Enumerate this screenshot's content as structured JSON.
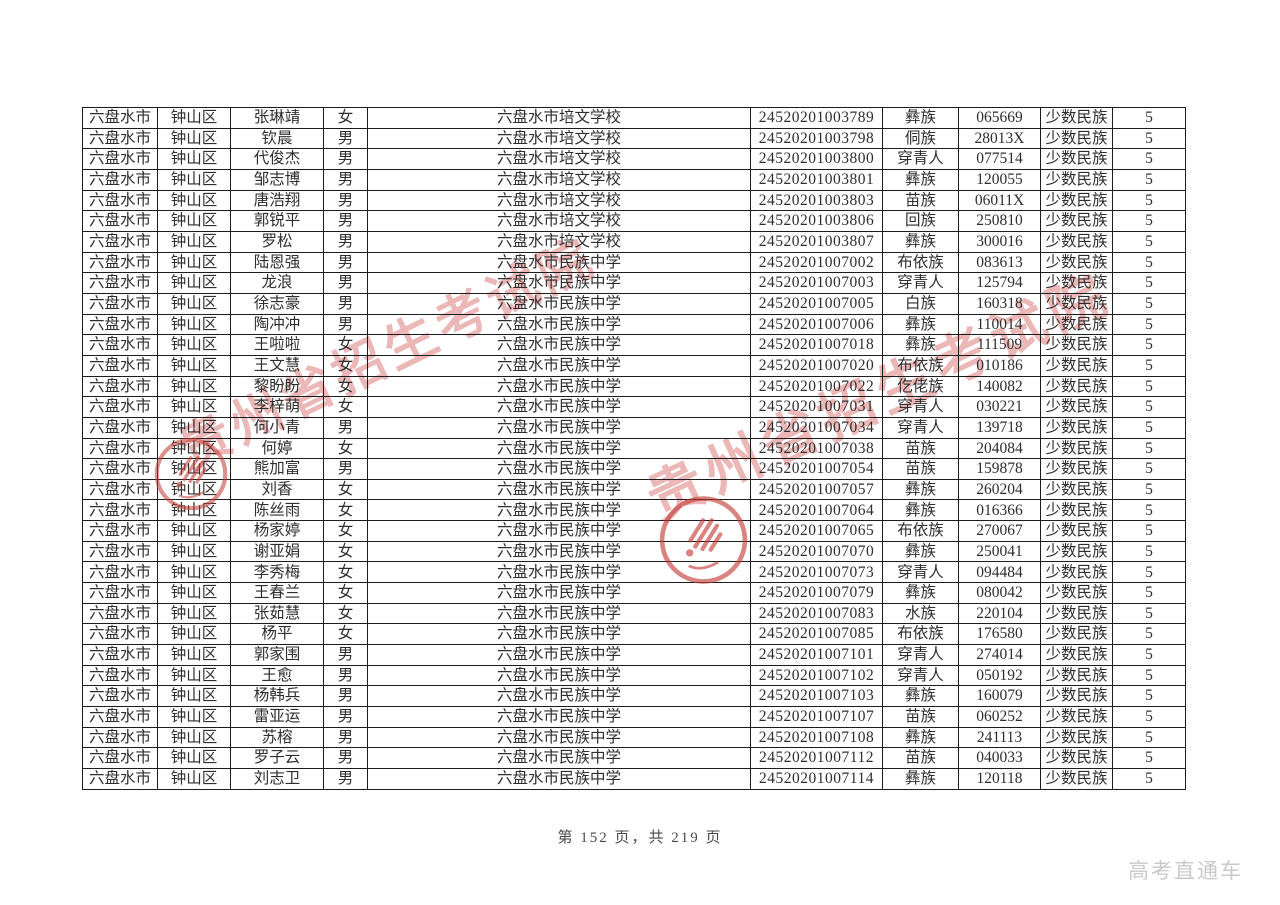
{
  "page": {
    "footer": "第 152 页，共 219 页",
    "page_number": "152",
    "total_pages": "219",
    "brand": "高考直通车"
  },
  "watermark": {
    "text": "贵州省招生考试院",
    "color": "#d96a6a",
    "seal_color": "#c23a33"
  },
  "table": {
    "columns": [
      "city",
      "district",
      "name",
      "gender",
      "school",
      "exam_number",
      "ethnicity",
      "code",
      "category",
      "bonus_points"
    ],
    "rows": [
      [
        "六盘水市",
        "钟山区",
        "张琳靖",
        "女",
        "六盘水市培文学校",
        "24520201003789",
        "彝族",
        "065669",
        "少数民族",
        "5"
      ],
      [
        "六盘水市",
        "钟山区",
        "钦晨",
        "男",
        "六盘水市培文学校",
        "24520201003798",
        "侗族",
        "28013X",
        "少数民族",
        "5"
      ],
      [
        "六盘水市",
        "钟山区",
        "代俊杰",
        "男",
        "六盘水市培文学校",
        "24520201003800",
        "穿青人",
        "077514",
        "少数民族",
        "5"
      ],
      [
        "六盘水市",
        "钟山区",
        "邹志博",
        "男",
        "六盘水市培文学校",
        "24520201003801",
        "彝族",
        "120055",
        "少数民族",
        "5"
      ],
      [
        "六盘水市",
        "钟山区",
        "唐浩翔",
        "男",
        "六盘水市培文学校",
        "24520201003803",
        "苗族",
        "06011X",
        "少数民族",
        "5"
      ],
      [
        "六盘水市",
        "钟山区",
        "郭锐平",
        "男",
        "六盘水市培文学校",
        "24520201003806",
        "回族",
        "250810",
        "少数民族",
        "5"
      ],
      [
        "六盘水市",
        "钟山区",
        "罗松",
        "男",
        "六盘水市培文学校",
        "24520201003807",
        "彝族",
        "300016",
        "少数民族",
        "5"
      ],
      [
        "六盘水市",
        "钟山区",
        "陆恩强",
        "男",
        "六盘水市民族中学",
        "24520201007002",
        "布依族",
        "083613",
        "少数民族",
        "5"
      ],
      [
        "六盘水市",
        "钟山区",
        "龙浪",
        "男",
        "六盘水市民族中学",
        "24520201007003",
        "穿青人",
        "125794",
        "少数民族",
        "5"
      ],
      [
        "六盘水市",
        "钟山区",
        "徐志豪",
        "男",
        "六盘水市民族中学",
        "24520201007005",
        "白族",
        "160318",
        "少数民族",
        "5"
      ],
      [
        "六盘水市",
        "钟山区",
        "陶冲冲",
        "男",
        "六盘水市民族中学",
        "24520201007006",
        "彝族",
        "110014",
        "少数民族",
        "5"
      ],
      [
        "六盘水市",
        "钟山区",
        "王啦啦",
        "女",
        "六盘水市民族中学",
        "24520201007018",
        "彝族",
        "111509",
        "少数民族",
        "5"
      ],
      [
        "六盘水市",
        "钟山区",
        "王文慧",
        "女",
        "六盘水市民族中学",
        "24520201007020",
        "布依族",
        "010186",
        "少数民族",
        "5"
      ],
      [
        "六盘水市",
        "钟山区",
        "黎盼盼",
        "女",
        "六盘水市民族中学",
        "24520201007022",
        "仡佬族",
        "140082",
        "少数民族",
        "5"
      ],
      [
        "六盘水市",
        "钟山区",
        "李梓萌",
        "女",
        "六盘水市民族中学",
        "24520201007031",
        "穿青人",
        "030221",
        "少数民族",
        "5"
      ],
      [
        "六盘水市",
        "钟山区",
        "何小青",
        "男",
        "六盘水市民族中学",
        "24520201007034",
        "穿青人",
        "139718",
        "少数民族",
        "5"
      ],
      [
        "六盘水市",
        "钟山区",
        "何婷",
        "女",
        "六盘水市民族中学",
        "24520201007038",
        "苗族",
        "204084",
        "少数民族",
        "5"
      ],
      [
        "六盘水市",
        "钟山区",
        "熊加富",
        "男",
        "六盘水市民族中学",
        "24520201007054",
        "苗族",
        "159878",
        "少数民族",
        "5"
      ],
      [
        "六盘水市",
        "钟山区",
        "刘香",
        "女",
        "六盘水市民族中学",
        "24520201007057",
        "彝族",
        "260204",
        "少数民族",
        "5"
      ],
      [
        "六盘水市",
        "钟山区",
        "陈丝雨",
        "女",
        "六盘水市民族中学",
        "24520201007064",
        "彝族",
        "016366",
        "少数民族",
        "5"
      ],
      [
        "六盘水市",
        "钟山区",
        "杨家婷",
        "女",
        "六盘水市民族中学",
        "24520201007065",
        "布依族",
        "270067",
        "少数民族",
        "5"
      ],
      [
        "六盘水市",
        "钟山区",
        "谢亚娟",
        "女",
        "六盘水市民族中学",
        "24520201007070",
        "彝族",
        "250041",
        "少数民族",
        "5"
      ],
      [
        "六盘水市",
        "钟山区",
        "李秀梅",
        "女",
        "六盘水市民族中学",
        "24520201007073",
        "穿青人",
        "094484",
        "少数民族",
        "5"
      ],
      [
        "六盘水市",
        "钟山区",
        "王春兰",
        "女",
        "六盘水市民族中学",
        "24520201007079",
        "彝族",
        "080042",
        "少数民族",
        "5"
      ],
      [
        "六盘水市",
        "钟山区",
        "张茹慧",
        "女",
        "六盘水市民族中学",
        "24520201007083",
        "水族",
        "220104",
        "少数民族",
        "5"
      ],
      [
        "六盘水市",
        "钟山区",
        "杨平",
        "女",
        "六盘水市民族中学",
        "24520201007085",
        "布依族",
        "176580",
        "少数民族",
        "5"
      ],
      [
        "六盘水市",
        "钟山区",
        "郭家围",
        "男",
        "六盘水市民族中学",
        "24520201007101",
        "穿青人",
        "274014",
        "少数民族",
        "5"
      ],
      [
        "六盘水市",
        "钟山区",
        "王愈",
        "男",
        "六盘水市民族中学",
        "24520201007102",
        "穿青人",
        "050192",
        "少数民族",
        "5"
      ],
      [
        "六盘水市",
        "钟山区",
        "杨韩兵",
        "男",
        "六盘水市民族中学",
        "24520201007103",
        "彝族",
        "160079",
        "少数民族",
        "5"
      ],
      [
        "六盘水市",
        "钟山区",
        "雷亚运",
        "男",
        "六盘水市民族中学",
        "24520201007107",
        "苗族",
        "060252",
        "少数民族",
        "5"
      ],
      [
        "六盘水市",
        "钟山区",
        "苏榕",
        "男",
        "六盘水市民族中学",
        "24520201007108",
        "彝族",
        "241113",
        "少数民族",
        "5"
      ],
      [
        "六盘水市",
        "钟山区",
        "罗子云",
        "男",
        "六盘水市民族中学",
        "24520201007112",
        "苗族",
        "040033",
        "少数民族",
        "5"
      ],
      [
        "六盘水市",
        "钟山区",
        "刘志卫",
        "男",
        "六盘水市民族中学",
        "24520201007114",
        "彝族",
        "120118",
        "少数民族",
        "5"
      ]
    ]
  }
}
